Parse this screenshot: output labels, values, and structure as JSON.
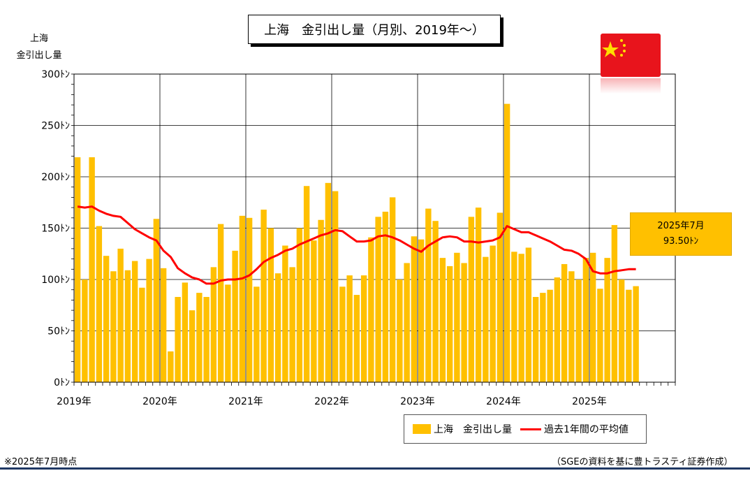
{
  "chart_data": {
    "type": "bar",
    "title": "上海　金引出し量（月別、2019年～）",
    "ylabel": "上海\n金引出し量",
    "y_unit": "ﾄﾝ",
    "ylim": [
      0,
      300
    ],
    "yticks": [
      0,
      50,
      100,
      150,
      200,
      250,
      300
    ],
    "ytick_labels": [
      "0ﾄﾝ",
      "50ﾄﾝ",
      "100ﾄﾝ",
      "150ﾄﾝ",
      "200ﾄﾝ",
      "250ﾄﾝ",
      "300ﾄﾝ"
    ],
    "x_start": "2019-01",
    "x_end": "2025-12",
    "year_labels": [
      "2019年",
      "2020年",
      "2021年",
      "2022年",
      "2023年",
      "2024年",
      "2025年"
    ],
    "grid": true,
    "legend_position": "bottom-right",
    "series": [
      {
        "name": "上海　金引出し量",
        "type": "bar",
        "color": "#ffc000",
        "values": [
          219,
          100,
          219,
          152,
          123,
          108,
          130,
          109,
          118,
          92,
          120,
          159,
          111,
          30,
          83,
          97,
          70,
          87,
          83,
          112,
          154,
          95,
          128,
          162,
          160,
          93,
          168,
          150,
          106,
          133,
          112,
          150,
          191,
          138,
          158,
          194,
          186,
          93,
          104,
          85,
          104,
          141,
          161,
          166,
          180,
          100,
          116,
          142,
          139,
          169,
          157,
          121,
          113,
          126,
          116,
          161,
          170,
          122,
          133,
          165,
          271,
          127,
          125,
          131,
          83,
          87,
          90,
          102,
          115,
          108,
          100,
          121,
          126,
          91,
          121,
          153,
          100,
          90,
          93.5
        ]
      },
      {
        "name": "過去1年間の平均値",
        "type": "line",
        "color": "#ff0000",
        "values": [
          171,
          170,
          171,
          167,
          164,
          162,
          161,
          155,
          149,
          145,
          141,
          138,
          128,
          122,
          111,
          106,
          102,
          100,
          96,
          96,
          99,
          100,
          100,
          101,
          104,
          110,
          117,
          121,
          124,
          128,
          130,
          134,
          137,
          140,
          143,
          145,
          148,
          147,
          142,
          137,
          137,
          138,
          142,
          143,
          141,
          138,
          134,
          130,
          127,
          133,
          137,
          141,
          142,
          141,
          137,
          137,
          136,
          137,
          138,
          141,
          152,
          149,
          146,
          146,
          143,
          140,
          137,
          133,
          129,
          128,
          125,
          120,
          108,
          106,
          106,
          108,
          109,
          110,
          110
        ]
      }
    ],
    "annotation": {
      "line1": "2025年7月",
      "line2": "93.50ﾄﾝ"
    }
  },
  "ylabel_line1": "上海",
  "ylabel_line2": "金引出し量",
  "note": "※2025年7月時点",
  "source": "（SGEの資料を基に豊トラスティ証券作成）",
  "flag_icon": "china-flag-icon"
}
